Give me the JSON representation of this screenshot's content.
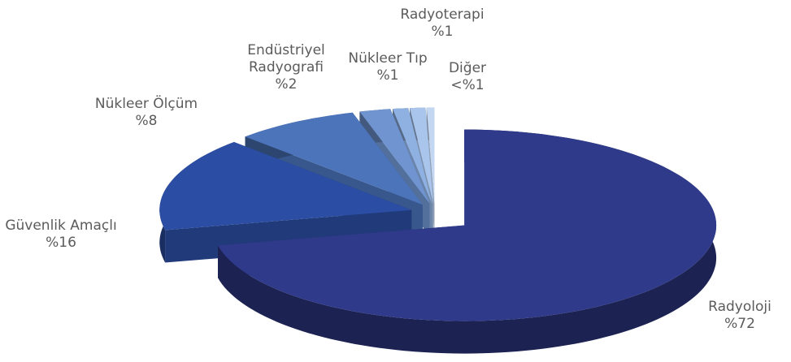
{
  "chart_data": {
    "type": "pie3d",
    "categories": [
      "Radyoloji",
      "Güvenlik Amaçlı",
      "Nükleer Ölçüm",
      "Endüstriyel Radyografi",
      "Nükleer Tıp",
      "Radyoterapi",
      "Diğer"
    ],
    "values": [
      72,
      16,
      8,
      2,
      1,
      1,
      0.5
    ],
    "value_labels": [
      "%72",
      "%16",
      "%8",
      "%2",
      "%1",
      "%1",
      "<%1"
    ],
    "colors": [
      "#2f3a8a",
      "#2b4da3",
      "#4b74bb",
      "#6f94d0",
      "#8fb1e2",
      "#a9c5ec",
      "#c4d7f2"
    ]
  }
}
